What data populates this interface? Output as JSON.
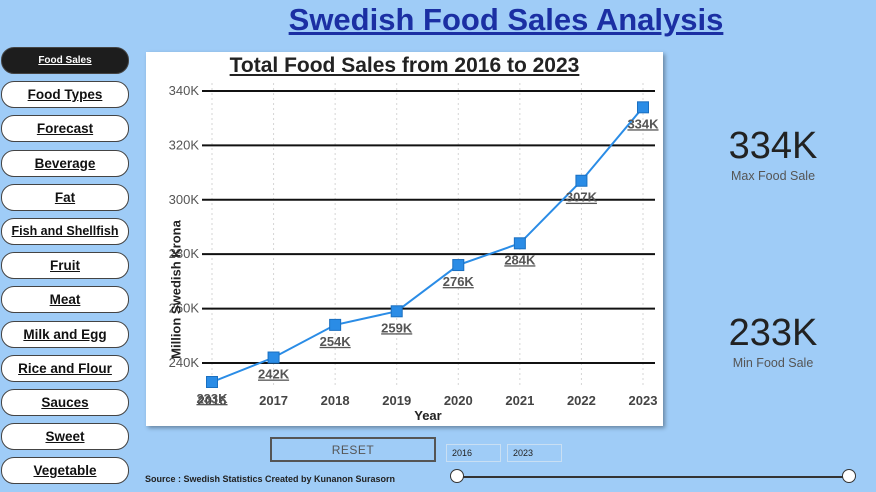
{
  "page": {
    "title": "Swedish Food Sales Analysis"
  },
  "nav": [
    {
      "label": "Food Sales",
      "active": true
    },
    {
      "label": "Food Types"
    },
    {
      "label": "Forecast"
    },
    {
      "label": "Beverage"
    },
    {
      "label": "Fat"
    },
    {
      "label": "Fish and Shellfish"
    },
    {
      "label": "Fruit"
    },
    {
      "label": "Meat"
    },
    {
      "label": "Milk and Egg"
    },
    {
      "label": "Rice and Flour"
    },
    {
      "label": "Sauces"
    },
    {
      "label": "Sweet"
    },
    {
      "label": "Vegetable"
    }
  ],
  "kpis": {
    "max": {
      "value": "334K",
      "label": "Max Food Sale"
    },
    "min": {
      "value": "233K",
      "label": "Min Food Sale"
    }
  },
  "controls": {
    "reset_label": "RESET",
    "date_start": "2016",
    "date_end": "2023",
    "slider_range": [
      2016,
      2023
    ]
  },
  "source": "Source :  Swedish Statistics Created by Kunanon Surasorn",
  "colors": {
    "line": "#2a8ce6",
    "marker": "#2a8ce6",
    "background": "#9fccf7",
    "title": "#1b2fa3"
  },
  "chart_data": {
    "type": "line",
    "title": "Total Food Sales from 2016 to 2023",
    "xlabel": "Year",
    "ylabel": "Million Swedish Krona",
    "x": [
      "2016",
      "2017",
      "2018",
      "2019",
      "2020",
      "2021",
      "2022",
      "2023"
    ],
    "values": [
      233,
      242,
      254,
      259,
      276,
      284,
      307,
      334
    ],
    "data_labels": [
      "233K",
      "242K",
      "254K",
      "259K",
      "276K",
      "284K",
      "307K",
      "334K"
    ],
    "yticks": [
      240,
      260,
      280,
      300,
      320,
      340
    ],
    "ytick_labels": [
      "240K",
      "260K",
      "280K",
      "300K",
      "320K",
      "340K"
    ],
    "ylim": [
      233,
      340
    ],
    "grid": true
  }
}
